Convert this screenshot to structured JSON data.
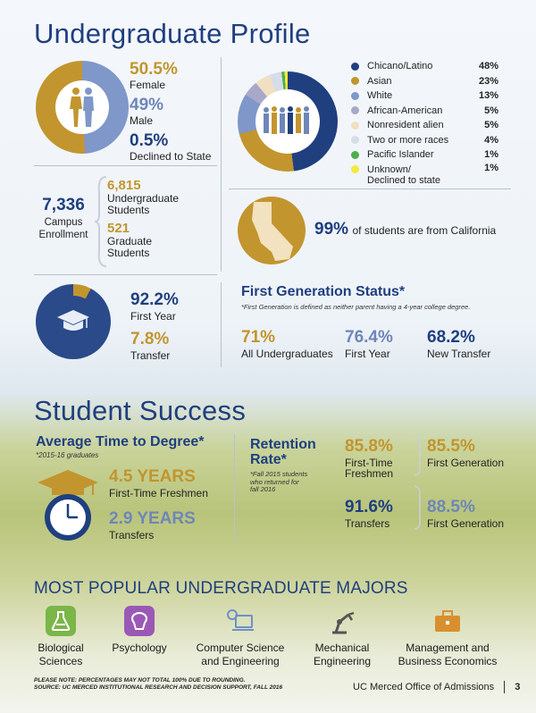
{
  "title": "Undergraduate Profile",
  "gender": {
    "female_pct": "50.5%",
    "female_label": "Female",
    "male_pct": "49%",
    "male_label": "Male",
    "declined_pct": "0.5%",
    "declined_label": "Declined to State"
  },
  "ethnicity": {
    "items": [
      {
        "label": "Chicano/Latino",
        "value": "48%",
        "color": "#1f3f7f",
        "pct": 48
      },
      {
        "label": "Asian",
        "value": "23%",
        "color": "#c2952e",
        "pct": 23
      },
      {
        "label": "White",
        "value": "13%",
        "color": "#7f97c9",
        "pct": 13
      },
      {
        "label": "African-American",
        "value": "5%",
        "color": "#a8a9c8",
        "pct": 5
      },
      {
        "label": "Nonresident alien",
        "value": "5%",
        "color": "#f0dfc0",
        "pct": 5
      },
      {
        "label": "Two or more races",
        "value": "4%",
        "color": "#d6dde9",
        "pct": 4
      },
      {
        "label": "Pacific Islander",
        "value": "1%",
        "color": "#4caf50",
        "pct": 1
      },
      {
        "label": "Unknown/",
        "label2": "Declined to state",
        "value": "1%",
        "color": "#f3ea3b",
        "pct": 1
      }
    ]
  },
  "enrollment": {
    "total": "7,336",
    "total_label1": "Campus",
    "total_label2": "Enrollment",
    "undergrad": "6,815",
    "undergrad_label1": "Undergraduate",
    "undergrad_label2": "Students",
    "grad": "521",
    "grad_label1": "Graduate",
    "grad_label2": "Students"
  },
  "california": {
    "pct": "99%",
    "text": "of students are from California"
  },
  "admission": {
    "first_year_pct": "92.2%",
    "first_year_label": "First Year",
    "transfer_pct": "7.8%",
    "transfer_label": "Transfer"
  },
  "first_gen": {
    "title": "First Generation Status*",
    "note": "*First Generation is defined as neither parent having a 4-year college degree.",
    "stats": [
      {
        "value": "71%",
        "label": "All Undergraduates"
      },
      {
        "value": "76.4%",
        "label": "First Year"
      },
      {
        "value": "68.2%",
        "label": "New Transfer"
      }
    ]
  },
  "success_title": "Student Success",
  "time_to_degree": {
    "title": "Average Time to Degree*",
    "note": "*2015-16 graduates",
    "freshmen_value": "4.5 YEARS",
    "freshmen_label": "First-Time Freshmen",
    "transfer_value": "2.9 YEARS",
    "transfer_label": "Transfers"
  },
  "retention": {
    "title1": "Retention",
    "title2": "Rate*",
    "note1": "*Fall 2015 students",
    "note2": "who returned for",
    "note3": "fall 2016",
    "ftf_value": "85.8%",
    "ftf_label1": "First-Time",
    "ftf_label2": "Freshmen",
    "ftf_gen_value": "85.5%",
    "ftf_gen_label": "First Generation",
    "tr_value": "91.6%",
    "tr_label": "Transfers",
    "tr_gen_value": "88.5%",
    "tr_gen_label": "First Generation"
  },
  "majors": {
    "title": "MOST POPULAR UNDERGRADUATE MAJORS",
    "items": [
      {
        "line1": "Biological",
        "line2": "Sciences"
      },
      {
        "line1": "Psychology",
        "line2": ""
      },
      {
        "line1": "Computer Science",
        "line2": "and Engineering"
      },
      {
        "line1": "Mechanical",
        "line2": "Engineering"
      },
      {
        "line1": "Management and",
        "line2": "Business Economics"
      }
    ]
  },
  "footer": {
    "note1": "PLEASE NOTE: PERCENTAGES MAY NOT TOTAL 100% DUE TO ROUNDING.",
    "note2": "SOURCE: UC MERCED INSTITUTIONAL RESEARCH AND DECISION SUPPORT, FALL 2016",
    "office": "UC Merced Office of Admissions",
    "page": "3"
  }
}
